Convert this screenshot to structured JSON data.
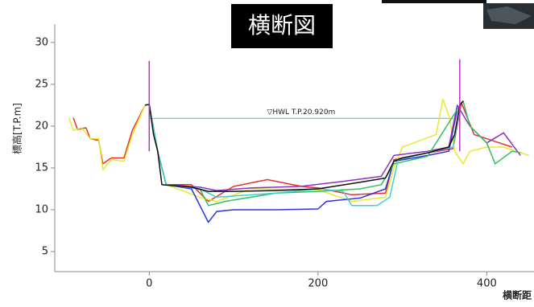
{
  "chart_data": {
    "type": "line",
    "title": "横断図",
    "y_label": "標高[T.P.m]",
    "x_label": "横断距",
    "xlim": [
      -112,
      456
    ],
    "ylim": [
      2.6,
      32.2
    ],
    "xticks": [
      0,
      200,
      400
    ],
    "yticks": [
      5,
      10,
      15,
      20,
      25,
      30
    ],
    "hwl": {
      "label": "▽HWL T.P.20.920m",
      "value": 20.92,
      "xlim": [
        0,
        360
      ],
      "color": "#5fd3d3"
    },
    "series": [
      {
        "color": "#e83030",
        "x": [
          -90,
          -85,
          -75,
          -70,
          -60,
          -55,
          -45,
          -30,
          -20,
          -5,
          0,
          10,
          20,
          50,
          70,
          100,
          140,
          180,
          200,
          240,
          280,
          290,
          330,
          360,
          370,
          385,
          400,
          430
        ],
        "values": [
          21,
          19.6,
          19.8,
          18.5,
          18.3,
          15.5,
          16.2,
          16.2,
          19.5,
          22.5,
          22.6,
          17,
          13,
          13,
          11,
          12.8,
          13.6,
          12.8,
          12.6,
          11.8,
          12,
          16,
          16.8,
          17.3,
          22.8,
          19,
          18.5,
          17.5
        ]
      },
      {
        "color": "#e8e830",
        "x": [
          -95,
          -90,
          -80,
          -70,
          -60,
          -55,
          -45,
          -30,
          -20,
          -5,
          0,
          10,
          20,
          60,
          80,
          120,
          200,
          240,
          280,
          290,
          300,
          340,
          348,
          356,
          362,
          372,
          380,
          400,
          420,
          450
        ],
        "values": [
          21,
          19.5,
          19.8,
          18.5,
          18.5,
          14.8,
          16,
          15.8,
          19,
          22.5,
          22.5,
          17,
          13,
          11.5,
          11,
          12.5,
          12.4,
          11,
          11.5,
          15,
          17.5,
          19,
          23.2,
          21,
          17,
          15.5,
          17,
          17.5,
          17.5,
          16.5
        ]
      },
      {
        "color": "#3030e0",
        "x": [
          0,
          10,
          20,
          50,
          60,
          70,
          80,
          100,
          150,
          200,
          210,
          250,
          280,
          290,
          330,
          355,
          365,
          372
        ],
        "values": [
          22.5,
          17,
          13,
          12.5,
          10.5,
          8.5,
          9.8,
          10,
          10,
          10.1,
          11,
          11.4,
          12.5,
          15.8,
          16.5,
          17,
          22,
          23
        ]
      },
      {
        "color": "#9030c0",
        "x": [
          0,
          10,
          20,
          60,
          80,
          120,
          180,
          230,
          260,
          275,
          290,
          330,
          355,
          365,
          380,
          400,
          420,
          440
        ],
        "values": [
          22.5,
          17,
          13,
          12.7,
          12.3,
          12.6,
          12.8,
          13.4,
          13.8,
          14,
          16.5,
          17,
          17.5,
          22.5,
          20,
          18,
          19.2,
          16.5
        ]
      },
      {
        "color": "#30c060",
        "x": [
          0,
          10,
          20,
          60,
          70,
          90,
          150,
          200,
          250,
          275,
          290,
          330,
          365,
          372,
          380,
          400,
          410,
          430,
          440
        ],
        "values": [
          22.5,
          17,
          13,
          12.5,
          10.5,
          11,
          12,
          12.2,
          12.5,
          13,
          15.5,
          16.4,
          22,
          23,
          20,
          18,
          15.5,
          17,
          16.8
        ]
      },
      {
        "color": "#40d0d0",
        "x": [
          0,
          10,
          20,
          60,
          80,
          150,
          200,
          230,
          240,
          270,
          285,
          295,
          330,
          360,
          368
        ],
        "values": [
          22.5,
          17,
          13,
          12.5,
          11.5,
          12,
          12.5,
          12.2,
          10.5,
          10.5,
          11.5,
          16,
          16.8,
          17.5,
          22
        ]
      },
      {
        "color": "#111111",
        "x": [
          -5,
          0,
          5,
          10,
          15,
          25,
          50,
          70,
          100,
          150,
          200,
          250,
          280,
          290,
          300,
          330,
          355,
          362,
          368,
          372
        ],
        "values": [
          22.5,
          22.6,
          19,
          17,
          13,
          12.9,
          12.7,
          12.2,
          12.2,
          12.3,
          12.5,
          13.3,
          13.8,
          15.8,
          16.2,
          16.8,
          17.5,
          19,
          22.5,
          23
        ]
      },
      {
        "color": "#c030c0",
        "x": [
          0,
          0,
          null,
          368,
          368
        ],
        "values": [
          17,
          27.8,
          null,
          17,
          28
        ]
      }
    ]
  }
}
